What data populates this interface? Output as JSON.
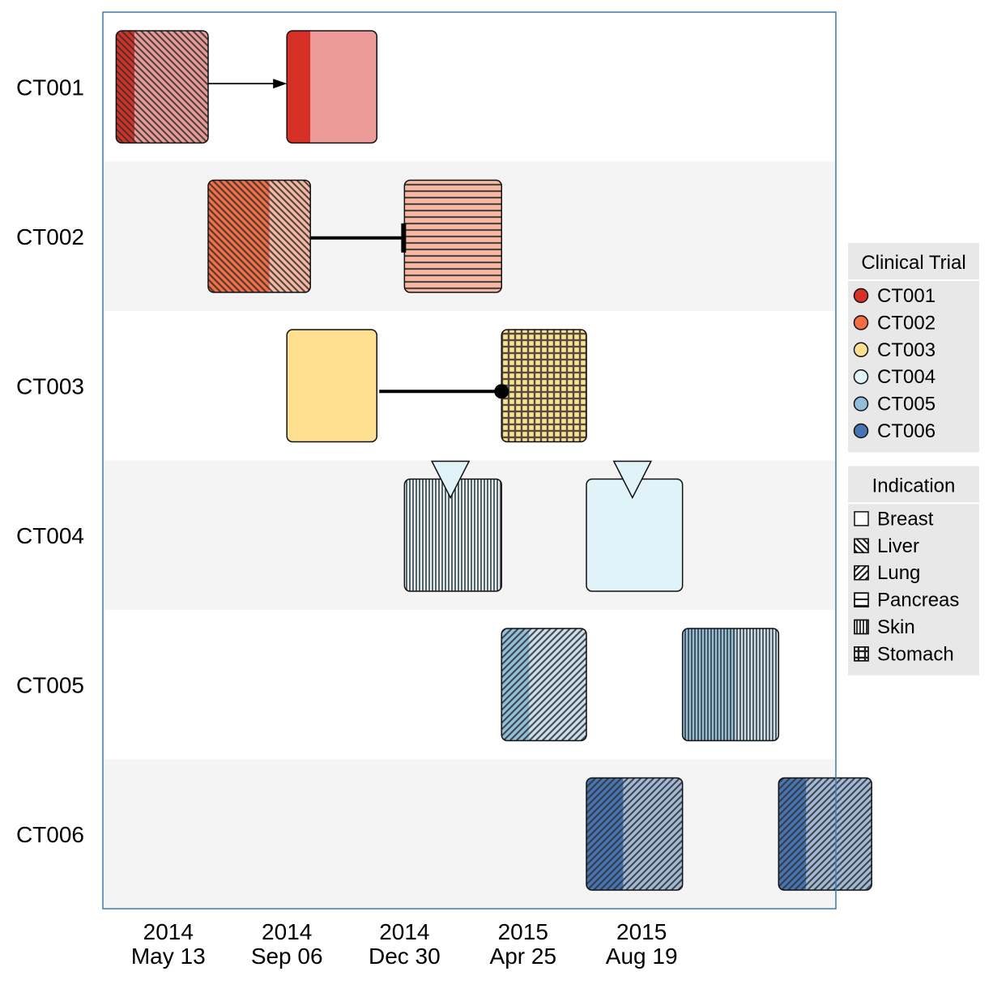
{
  "chart_data": {
    "type": "timeline",
    "title": "",
    "xlabel": "",
    "ylabel": "",
    "x_ticks": [
      {
        "date": "2014-05-13",
        "year": "2014",
        "label": "May 13"
      },
      {
        "date": "2014-09-06",
        "year": "2014",
        "label": "Sep 06"
      },
      {
        "date": "2014-12-30",
        "year": "2014",
        "label": "Dec 30"
      },
      {
        "date": "2015-04-25",
        "year": "2015",
        "label": "Apr 25"
      },
      {
        "date": "2015-08-19",
        "year": "2015",
        "label": "Aug 19"
      }
    ],
    "xlim": [
      "2014-03-10",
      "2016-02-25"
    ],
    "trials": [
      {
        "name": "CT001",
        "color": "#d73027",
        "light": "#ec9b99",
        "phases": [
          {
            "start": "2014-03-23",
            "end": "2014-06-21",
            "split": "2014-04-10",
            "indication": "Liver"
          },
          {
            "start": "2014-09-06",
            "end": "2014-12-03",
            "split": "2014-09-29",
            "indication": "Breast"
          }
        ]
      },
      {
        "name": "CT002",
        "color": "#f46d43",
        "light": "#f9b8a1",
        "phases": [
          {
            "start": "2014-06-21",
            "end": "2014-09-29",
            "split": "2014-08-20",
            "indication": "Liver"
          },
          {
            "start": "2014-12-30",
            "end": "2015-04-04",
            "split": "2014-12-30",
            "indication": "Pancreas"
          }
        ]
      },
      {
        "name": "CT003",
        "color": "#fee090",
        "light": "#fee090",
        "phases": [
          {
            "start": "2014-09-06",
            "end": "2014-12-03",
            "split": "2014-12-03",
            "indication": "Breast"
          },
          {
            "start": "2015-04-04",
            "end": "2015-06-26",
            "split": "2015-04-04",
            "indication": "Stomach"
          }
        ]
      },
      {
        "name": "CT004",
        "color": "#e0f3f8",
        "light": "#e0f3f8",
        "phases": [
          {
            "start": "2014-12-30",
            "end": "2015-04-04",
            "split": "2014-12-30",
            "indication": "Skin"
          },
          {
            "start": "2015-06-26",
            "end": "2015-09-28",
            "split": "2015-09-28",
            "indication": "Breast"
          }
        ]
      },
      {
        "name": "CT005",
        "color": "#91bfdb",
        "light": "#c8dfed",
        "phases": [
          {
            "start": "2015-04-04",
            "end": "2015-06-26",
            "split": "2015-05-01",
            "indication": "Lung"
          },
          {
            "start": "2015-09-28",
            "end": "2015-12-31",
            "split": "2015-11-19",
            "indication": "Skin"
          }
        ]
      },
      {
        "name": "CT006",
        "color": "#4575b4",
        "light": "#a2bad9",
        "phases": [
          {
            "start": "2015-06-26",
            "end": "2015-09-28",
            "split": "2015-08-01",
            "indication": "Lung"
          },
          {
            "start": "2015-12-31",
            "end": "2016-03-31",
            "split": "2016-01-27",
            "indication": "Lung"
          }
        ]
      }
    ],
    "connectors": [
      {
        "trial": "CT001",
        "style": "arrow"
      },
      {
        "trial": "CT002",
        "style": "bar"
      },
      {
        "trial": "CT003",
        "style": "dot"
      }
    ],
    "markers": [
      {
        "trial": "CT004",
        "date": "2015-02-13",
        "shape": "triangle-down"
      },
      {
        "trial": "CT004",
        "date": "2015-08-10",
        "shape": "triangle-down"
      }
    ],
    "legends": [
      {
        "title": "Clinical Trial",
        "entries": [
          {
            "label": "CT001",
            "color": "#d73027"
          },
          {
            "label": "CT002",
            "color": "#f46d43"
          },
          {
            "label": "CT003",
            "color": "#fee090"
          },
          {
            "label": "CT004",
            "color": "#e0f3f8"
          },
          {
            "label": "CT005",
            "color": "#91bfdb"
          },
          {
            "label": "CT006",
            "color": "#4575b4"
          }
        ]
      },
      {
        "title": "Indication",
        "entries": [
          {
            "label": "Breast",
            "pattern": "none"
          },
          {
            "label": "Liver",
            "pattern": "diag-back"
          },
          {
            "label": "Lung",
            "pattern": "diag-fwd"
          },
          {
            "label": "Pancreas",
            "pattern": "horizontal"
          },
          {
            "label": "Skin",
            "pattern": "vertical"
          },
          {
            "label": "Stomach",
            "pattern": "grid"
          }
        ]
      }
    ],
    "legend_position": "right",
    "grid": false
  }
}
